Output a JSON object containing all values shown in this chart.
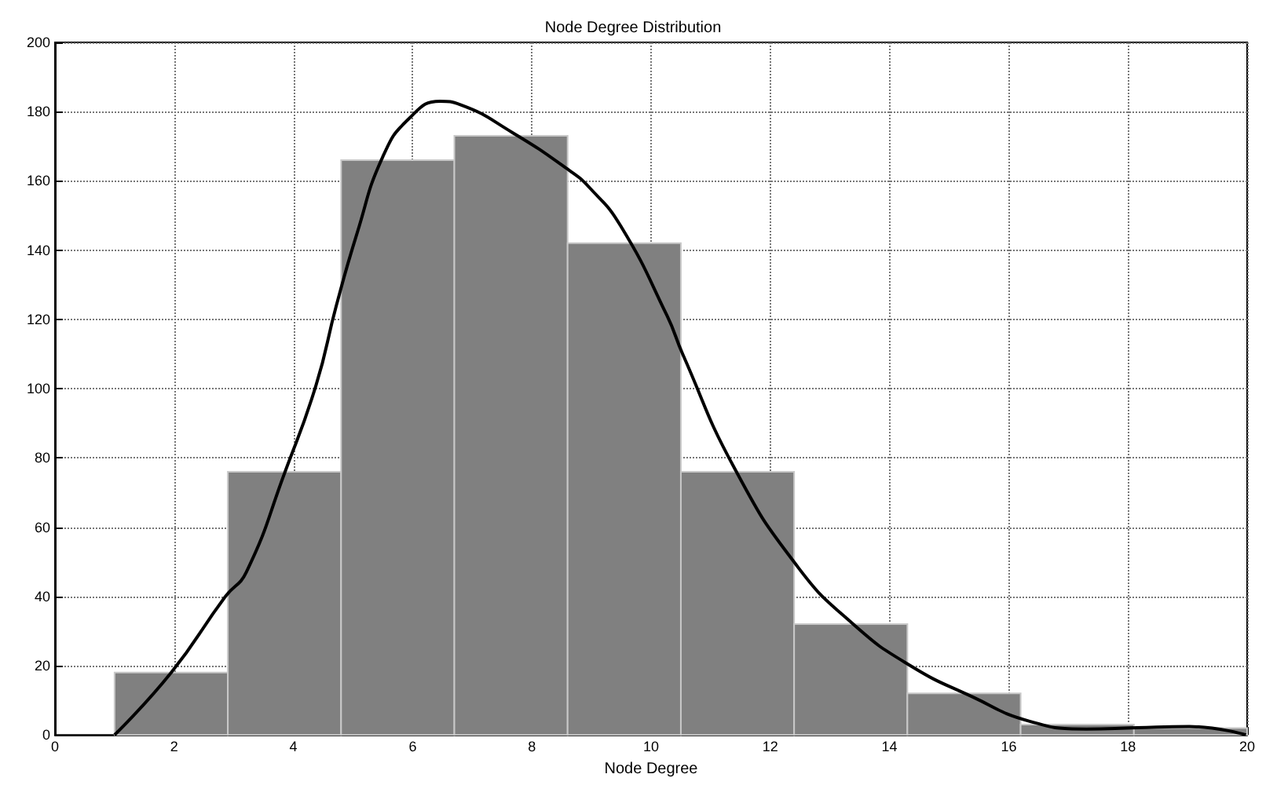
{
  "chart_data": {
    "type": "histogram",
    "title": "Node Degree Distribution",
    "xlabel": "Node Degree",
    "bins": [
      1,
      2.9,
      4.8,
      6.7,
      8.6,
      10.5,
      12.4,
      14.3,
      16.2,
      18.1,
      20
    ],
    "values": [
      18,
      76,
      166,
      173,
      142,
      76,
      32,
      12,
      3,
      2
    ],
    "color": "#808080",
    "series": [
      {
        "type": "line",
        "color": "#000000",
        "x": [
          1,
          1.95,
          2.86,
          3.21,
          3.86,
          4.38,
          4.72,
          5.07,
          5.5,
          5.94,
          6.46,
          6.8,
          7.67,
          8.63,
          8.97,
          9.49,
          10.27,
          10.53,
          11.4,
          12.44,
          13.39,
          14.35,
          15.39,
          16.34,
          17.3,
          18.15,
          19.03,
          19.98
        ],
        "values": [
          0,
          18,
          40,
          47,
          76,
          101,
          124,
          145,
          167,
          178,
          183,
          182,
          174,
          163,
          158,
          147,
          121,
          110,
          77,
          49,
          32,
          20,
          11,
          4,
          1.7,
          2.1,
          2.4,
          0
        ]
      }
    ],
    "marker": "none",
    "line_style": "solid",
    "xlim": [
      0,
      20
    ],
    "xticks": [
      0,
      2,
      4,
      6,
      8,
      10,
      12,
      14,
      16,
      18,
      20
    ],
    "ylim": [
      0,
      200
    ],
    "yticks": [
      0,
      20,
      40,
      60,
      80,
      100,
      120,
      140,
      160,
      180,
      200
    ],
    "grid": true
  }
}
